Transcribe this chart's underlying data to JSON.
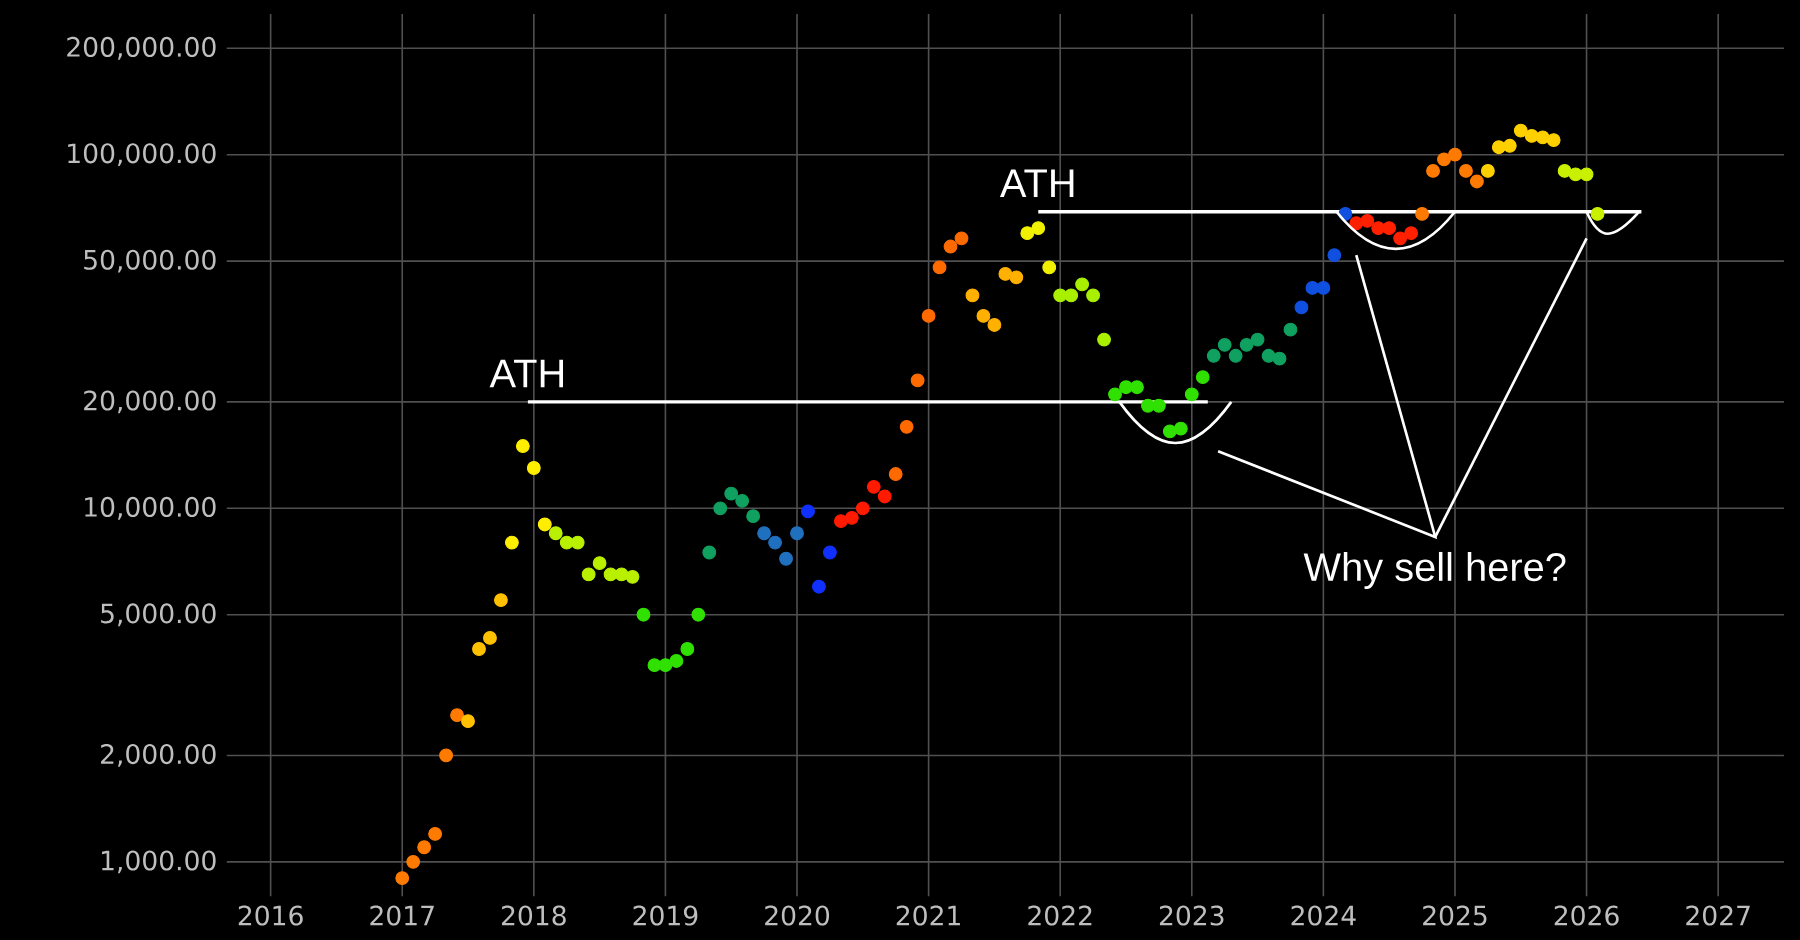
{
  "chart_data": {
    "type": "scatter",
    "log": "y",
    "grid": true,
    "marker": "circle",
    "xlim": [
      "2015-09",
      "2027-07"
    ],
    "ylim": [
      800,
      250000
    ],
    "xticks": [
      "2016",
      "2017",
      "2018",
      "2019",
      "2020",
      "2021",
      "2022",
      "2023",
      "2024",
      "2025",
      "2026",
      "2027"
    ],
    "yticks": [
      {
        "value": 1000,
        "label": "1,000.00"
      },
      {
        "value": 2000,
        "label": "2,000.00"
      },
      {
        "value": 5000,
        "label": "5,000.00"
      },
      {
        "value": 10000,
        "label": "10,000.00"
      },
      {
        "value": 20000,
        "label": "20,000.00"
      },
      {
        "value": 50000,
        "label": "50,000.00"
      },
      {
        "value": 100000,
        "label": "100,000.00"
      },
      {
        "value": 200000,
        "label": "200,000.00"
      }
    ],
    "series": [
      {
        "color": "#ff7a00",
        "x": [
          "2017-01",
          "2017-02",
          "2017-03",
          "2017-04",
          "2017-05",
          "2017-06"
        ],
        "values": [
          900,
          1000,
          1100,
          1200,
          2000,
          2600
        ]
      },
      {
        "color": "#ffc000",
        "x": [
          "2017-07",
          "2017-08",
          "2017-09",
          "2017-10"
        ],
        "values": [
          2500,
          4000,
          4300,
          5500
        ]
      },
      {
        "color": "#ffee00",
        "x": [
          "2017-11",
          "2017-12",
          "2018-01",
          "2018-02"
        ],
        "values": [
          8000,
          15000,
          13000,
          9000
        ]
      },
      {
        "color": "#b8f000",
        "x": [
          "2018-03",
          "2018-04",
          "2018-05",
          "2018-06",
          "2018-07",
          "2018-08",
          "2018-09",
          "2018-10"
        ],
        "values": [
          8500,
          8000,
          8000,
          6500,
          7000,
          6500,
          6500,
          6400
        ]
      },
      {
        "color": "#30e000",
        "x": [
          "2018-11",
          "2018-12",
          "2019-01",
          "2019-02",
          "2019-03",
          "2019-04"
        ],
        "values": [
          5000,
          3600,
          3600,
          3700,
          4000,
          5000
        ]
      },
      {
        "color": "#10a060",
        "x": [
          "2019-05",
          "2019-06",
          "2019-07",
          "2019-08",
          "2019-09"
        ],
        "values": [
          7500,
          10000,
          11000,
          10500,
          9500
        ]
      },
      {
        "color": "#2070c0",
        "x": [
          "2019-10",
          "2019-11",
          "2019-12",
          "2020-01"
        ],
        "values": [
          8500,
          8000,
          7200,
          8500
        ]
      },
      {
        "color": "#1030ff",
        "x": [
          "2020-02",
          "2020-03",
          "2020-04"
        ],
        "values": [
          9800,
          6000,
          7500
        ]
      },
      {
        "color": "#ff1a00",
        "x": [
          "2020-05",
          "2020-06",
          "2020-07",
          "2020-08",
          "2020-09"
        ],
        "values": [
          9200,
          9400,
          10000,
          11500,
          10800
        ]
      },
      {
        "color": "#ff6a00",
        "x": [
          "2020-10",
          "2020-11",
          "2020-12",
          "2021-01",
          "2021-02",
          "2021-03",
          "2021-04"
        ],
        "values": [
          12500,
          17000,
          23000,
          35000,
          48000,
          55000,
          58000
        ]
      },
      {
        "color": "#ffb000",
        "x": [
          "2021-05",
          "2021-06",
          "2021-07",
          "2021-08",
          "2021-09"
        ],
        "values": [
          40000,
          35000,
          33000,
          46000,
          45000
        ]
      },
      {
        "color": "#f0f000",
        "x": [
          "2021-10",
          "2021-11",
          "2021-12"
        ],
        "values": [
          60000,
          62000,
          48000
        ]
      },
      {
        "color": "#a8f000",
        "x": [
          "2022-01",
          "2022-02",
          "2022-03",
          "2022-04",
          "2022-05"
        ],
        "values": [
          40000,
          40000,
          43000,
          40000,
          30000
        ]
      },
      {
        "color": "#30e000",
        "x": [
          "2022-06",
          "2022-07",
          "2022-08",
          "2022-09",
          "2022-10",
          "2022-11",
          "2022-12",
          "2023-01",
          "2023-02"
        ],
        "values": [
          21000,
          22000,
          22000,
          19500,
          19500,
          16500,
          16800,
          21000,
          23500
        ]
      },
      {
        "color": "#10a060",
        "x": [
          "2023-03",
          "2023-04",
          "2023-05",
          "2023-06",
          "2023-07",
          "2023-08",
          "2023-09",
          "2023-10"
        ],
        "values": [
          27000,
          29000,
          27000,
          29000,
          30000,
          27000,
          26500,
          32000
        ]
      },
      {
        "color": "#1050e0",
        "x": [
          "2023-11",
          "2023-12",
          "2024-01",
          "2024-02",
          "2024-03"
        ],
        "values": [
          37000,
          42000,
          42000,
          52000,
          68000
        ]
      },
      {
        "color": "#ff2000",
        "x": [
          "2024-04",
          "2024-05",
          "2024-06",
          "2024-07",
          "2024-08",
          "2024-09"
        ],
        "values": [
          64000,
          65000,
          62000,
          62000,
          58000,
          60000
        ]
      },
      {
        "color": "#ff7a00",
        "x": [
          "2024-10",
          "2024-11",
          "2024-12",
          "2025-01",
          "2025-02",
          "2025-03"
        ],
        "values": [
          68000,
          90000,
          97000,
          100000,
          90000,
          84000
        ]
      },
      {
        "color": "#ffd000",
        "x": [
          "2025-04",
          "2025-05",
          "2025-06",
          "2025-07",
          "2025-08",
          "2025-09",
          "2025-10"
        ],
        "values": [
          90000,
          105000,
          106000,
          117000,
          113000,
          112000,
          110000
        ]
      },
      {
        "color": "#c8f000",
        "x": [
          "2025-11",
          "2025-12",
          "2026-01",
          "2026-02"
        ],
        "values": [
          90000,
          88000,
          88000,
          68000
        ]
      },
      {
        "type": "line",
        "marker": "none",
        "color": "#ffffff",
        "x": [
          "2017-12-15",
          "2023-02-15"
        ],
        "values": [
          20000,
          20000
        ]
      },
      {
        "type": "line",
        "marker": "none",
        "color": "#ffffff",
        "x": [
          "2021-11",
          "2026-06"
        ],
        "values": [
          69000,
          69000
        ]
      }
    ],
    "annotations": [
      {
        "text": "ATH",
        "x": "2017-12-15",
        "y": 20000
      },
      {
        "text": "ATH",
        "x": "2021-11",
        "y": 69000
      },
      "Why sell here?"
    ]
  }
}
